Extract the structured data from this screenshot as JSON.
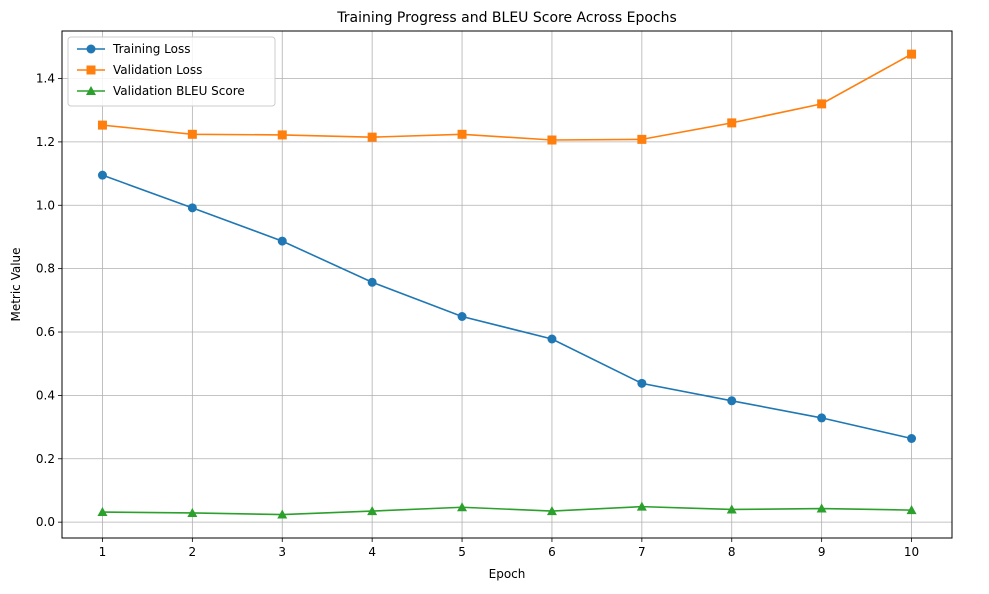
{
  "chart_data": {
    "type": "line",
    "title": "Training Progress and BLEU Score Across Epochs",
    "xlabel": "Epoch",
    "ylabel": "Metric Value",
    "x": [
      1,
      2,
      3,
      4,
      5,
      6,
      7,
      8,
      9,
      10
    ],
    "xlim": [
      0.55,
      10.45
    ],
    "ylim": [
      -0.05,
      1.55
    ],
    "xticks": [
      "1",
      "2",
      "3",
      "4",
      "5",
      "6",
      "7",
      "8",
      "9",
      "10"
    ],
    "yticks": [
      "0.0",
      "0.2",
      "0.4",
      "0.6",
      "0.8",
      "1.0",
      "1.2",
      "1.4"
    ],
    "grid": true,
    "legend_position": "top-left",
    "series": [
      {
        "name": "Training Loss",
        "marker": "circle",
        "color": "#1f77b4",
        "values": [
          1.095,
          0.992,
          0.887,
          0.757,
          0.649,
          0.578,
          0.438,
          0.383,
          0.329,
          0.264
        ]
      },
      {
        "name": "Validation Loss",
        "marker": "square",
        "color": "#ff7f0e",
        "values": [
          1.253,
          1.224,
          1.222,
          1.215,
          1.224,
          1.206,
          1.208,
          1.26,
          1.32,
          1.477
        ]
      },
      {
        "name": "Validation BLEU Score",
        "marker": "triangle",
        "color": "#2ca02c",
        "values": [
          0.032,
          0.029,
          0.024,
          0.035,
          0.047,
          0.035,
          0.049,
          0.04,
          0.043,
          0.038
        ]
      }
    ]
  }
}
